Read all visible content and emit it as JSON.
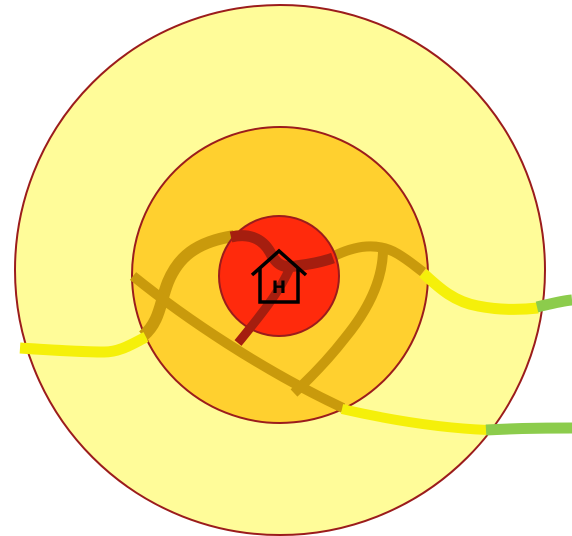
{
  "home": {
    "letter": "H",
    "icon": "house-icon"
  },
  "colors": {
    "outer_zone": "#fffc99",
    "middle_zone": "#ffd02f",
    "inner_zone": "#ff2a0c",
    "zone_border": "#9b1c1c",
    "road_near": "#dc3a1b",
    "road_core": "#a51e0f",
    "road_mid": "#c99a0c",
    "road_outer": "#f5f00a",
    "road_far": "#8ccc4c"
  }
}
